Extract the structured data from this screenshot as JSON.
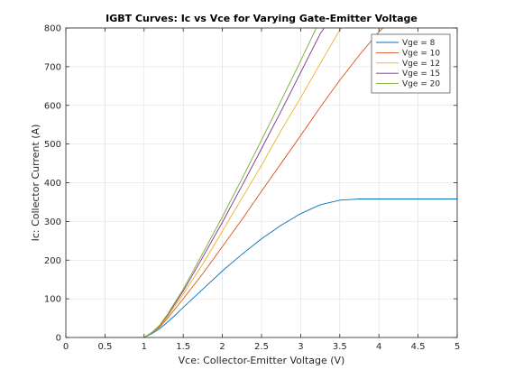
{
  "chart_data": {
    "type": "line",
    "title": "IGBT Curves: Ic vs Vce for Varying Gate-Emitter Voltage",
    "xlabel": "Vce: Collector-Emitter Voltage (V)",
    "ylabel": "Ic: Collector Current (A)",
    "xlim": [
      0,
      5
    ],
    "ylim": [
      0,
      800
    ],
    "xticks": [
      0,
      0.5,
      1,
      1.5,
      2,
      2.5,
      3,
      3.5,
      4,
      4.5,
      5
    ],
    "yticks": [
      0,
      100,
      200,
      300,
      400,
      500,
      600,
      700,
      800
    ],
    "xtick_labels": [
      "0",
      "0.5",
      "1",
      "1.5",
      "2",
      "2.5",
      "3",
      "3.5",
      "4",
      "4.5",
      "5"
    ],
    "ytick_labels": [
      "0",
      "100",
      "200",
      "300",
      "400",
      "500",
      "600",
      "700",
      "800"
    ],
    "grid": true,
    "legend_position": "top-right",
    "series": [
      {
        "name": "Vge = 8",
        "color": "#0072BD",
        "points": [
          [
            0.2,
            0
          ],
          [
            0.5,
            0
          ],
          [
            0.8,
            0
          ],
          [
            1.0,
            0
          ],
          [
            1.1,
            10
          ],
          [
            1.2,
            23
          ],
          [
            1.3,
            40
          ],
          [
            1.4,
            58
          ],
          [
            1.5,
            78
          ],
          [
            1.75,
            125
          ],
          [
            2.0,
            172
          ],
          [
            2.25,
            215
          ],
          [
            2.5,
            255
          ],
          [
            2.75,
            290
          ],
          [
            3.0,
            320
          ],
          [
            3.25,
            343
          ],
          [
            3.5,
            355
          ],
          [
            3.75,
            358
          ],
          [
            4.0,
            358
          ],
          [
            4.5,
            358
          ],
          [
            5.0,
            358
          ]
        ]
      },
      {
        "name": "Vge = 10",
        "color": "#D95319",
        "points": [
          [
            0.2,
            0
          ],
          [
            0.5,
            0
          ],
          [
            0.8,
            0
          ],
          [
            1.0,
            0
          ],
          [
            1.1,
            12
          ],
          [
            1.2,
            27
          ],
          [
            1.3,
            50
          ],
          [
            1.5,
            100
          ],
          [
            1.75,
            165
          ],
          [
            2.0,
            235
          ],
          [
            2.25,
            305
          ],
          [
            2.5,
            378
          ],
          [
            2.75,
            450
          ],
          [
            3.0,
            522
          ],
          [
            3.25,
            595
          ],
          [
            3.5,
            665
          ],
          [
            3.75,
            730
          ],
          [
            4.0,
            790
          ],
          [
            4.05,
            800
          ]
        ]
      },
      {
        "name": "Vge = 12",
        "color": "#EDB120",
        "points": [
          [
            0.2,
            0
          ],
          [
            0.5,
            0
          ],
          [
            0.8,
            0
          ],
          [
            1.0,
            0
          ],
          [
            1.1,
            12
          ],
          [
            1.2,
            30
          ],
          [
            1.3,
            55
          ],
          [
            1.5,
            112
          ],
          [
            1.75,
            190
          ],
          [
            2.0,
            275
          ],
          [
            2.25,
            360
          ],
          [
            2.5,
            445
          ],
          [
            2.75,
            535
          ],
          [
            3.0,
            620
          ],
          [
            3.25,
            708
          ],
          [
            3.5,
            795
          ],
          [
            3.52,
            800
          ]
        ]
      },
      {
        "name": "Vge = 15",
        "color": "#7E2F8E",
        "points": [
          [
            0.2,
            0
          ],
          [
            0.5,
            0
          ],
          [
            0.8,
            0
          ],
          [
            1.0,
            0
          ],
          [
            1.1,
            13
          ],
          [
            1.2,
            31
          ],
          [
            1.3,
            58
          ],
          [
            1.5,
            120
          ],
          [
            1.75,
            208
          ],
          [
            2.0,
            298
          ],
          [
            2.25,
            392
          ],
          [
            2.5,
            488
          ],
          [
            2.75,
            585
          ],
          [
            3.0,
            685
          ],
          [
            3.25,
            785
          ],
          [
            3.3,
            800
          ]
        ]
      },
      {
        "name": "Vge = 20",
        "color": "#77AC30",
        "points": [
          [
            0.2,
            0
          ],
          [
            0.5,
            0
          ],
          [
            0.8,
            0
          ],
          [
            1.0,
            0
          ],
          [
            1.1,
            13
          ],
          [
            1.2,
            32
          ],
          [
            1.3,
            60
          ],
          [
            1.5,
            125
          ],
          [
            1.75,
            218
          ],
          [
            2.0,
            312
          ],
          [
            2.25,
            410
          ],
          [
            2.5,
            510
          ],
          [
            2.75,
            612
          ],
          [
            3.0,
            715
          ],
          [
            3.2,
            800
          ]
        ]
      }
    ]
  }
}
